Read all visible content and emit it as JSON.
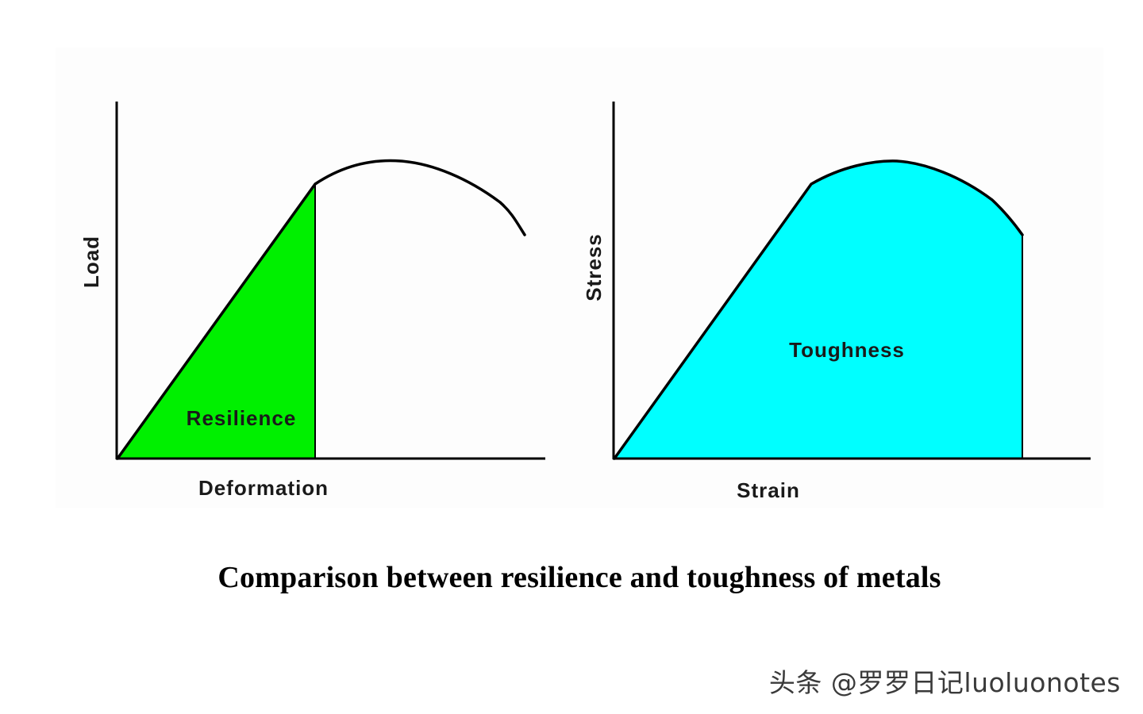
{
  "colors": {
    "resilience_fill": "#00f000",
    "toughness_fill": "#00ffff",
    "curve_stroke": "#000000",
    "background": "#ffffff"
  },
  "left_diagram": {
    "y_label": "Load",
    "x_label": "Deformation",
    "region_label": "Resilience"
  },
  "right_diagram": {
    "y_label": "Stress",
    "x_label": "Strain",
    "region_label": "Toughness"
  },
  "caption": "Comparison between resilience and toughness of metals",
  "watermark": "头条 @罗罗日记luoluonotes"
}
